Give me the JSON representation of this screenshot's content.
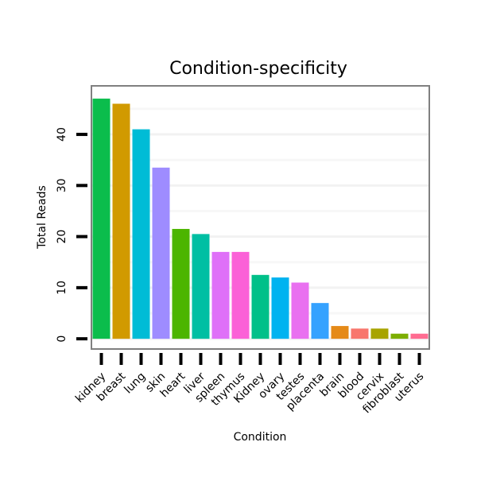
{
  "chart_data": {
    "type": "bar",
    "title": "Condition-specificity",
    "xlabel": "Condition",
    "ylabel": "Total Reads",
    "ylim": [
      -2,
      49.5
    ],
    "yticks": [
      0,
      10,
      20,
      30,
      40
    ],
    "grid": true,
    "categories": [
      "kidney",
      "breast",
      "lung",
      "skin",
      "heart",
      "liver",
      "spleen",
      "thymus",
      "Kidney",
      "ovary",
      "testes",
      "placenta",
      "brain",
      "blood",
      "cervix",
      "fibroblast",
      "uterus"
    ],
    "values": [
      47,
      46,
      41,
      33.5,
      21.5,
      20.5,
      17,
      17,
      12.5,
      12,
      11,
      7,
      2.5,
      2,
      2,
      1,
      1
    ],
    "colors": [
      "#0bbd4c",
      "#d19a00",
      "#00bcd6",
      "#9e8cff",
      "#4cb500",
      "#00bfa3",
      "#df70f8",
      "#fb61d7",
      "#00c089",
      "#00b3f0",
      "#e970f0",
      "#35a2ff",
      "#e58a18",
      "#f8766d",
      "#a8a400",
      "#7cae00",
      "#ff6c91"
    ]
  }
}
